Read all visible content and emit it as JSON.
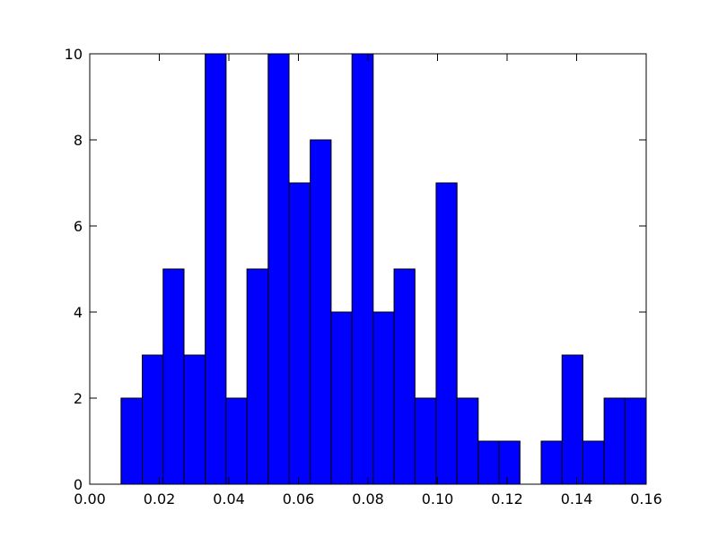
{
  "chart_data": {
    "type": "histogram",
    "bins": [
      0.009,
      0.0151,
      0.0211,
      0.0271,
      0.0332,
      0.0392,
      0.0452,
      0.0513,
      0.0573,
      0.0634,
      0.0694,
      0.0754,
      0.0815,
      0.0875,
      0.0935,
      0.0996,
      0.1056,
      0.1117,
      0.1177,
      0.1237,
      0.1298,
      0.1358,
      0.1418,
      0.1479,
      0.1539,
      0.16
    ],
    "values": [
      2,
      3,
      5,
      3,
      10,
      2,
      5,
      10,
      7,
      8,
      4,
      10,
      4,
      5,
      2,
      7,
      2,
      1,
      1,
      0,
      1,
      3,
      1,
      2,
      2
    ],
    "color": "#0000ff",
    "xlim": [
      0,
      0.16
    ],
    "xticks": [
      {
        "value": 0,
        "label": "0.00"
      },
      {
        "value": 0.02,
        "label": "0.02"
      },
      {
        "value": 0.04,
        "label": "0.04"
      },
      {
        "value": 0.06,
        "label": "0.06"
      },
      {
        "value": 0.08,
        "label": "0.08"
      },
      {
        "value": 0.1,
        "label": "0.10"
      },
      {
        "value": 0.12,
        "label": "0.12"
      },
      {
        "value": 0.14,
        "label": "0.14"
      },
      {
        "value": 0.16,
        "label": "0.16"
      }
    ],
    "ylim": [
      0,
      10
    ],
    "yticks": [
      0,
      2,
      4,
      6,
      8,
      10
    ],
    "grid": false
  }
}
